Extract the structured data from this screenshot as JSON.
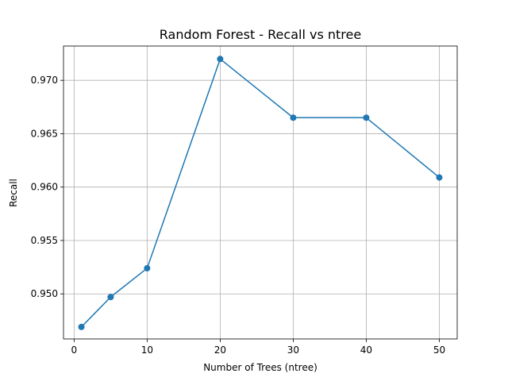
{
  "chart_data": {
    "type": "line",
    "title": "Random Forest - Recall vs ntree",
    "xlabel": "Number of Trees (ntree)",
    "ylabel": "Recall",
    "x": [
      1,
      5,
      10,
      20,
      30,
      40,
      50
    ],
    "series": [
      {
        "values": [
          0.9469,
          0.9497,
          0.9524,
          0.972,
          0.9665,
          0.9665,
          0.9609
        ],
        "color": "#1f77b4",
        "marker": "circle"
      }
    ],
    "xlim": [
      -1.45,
      52.45
    ],
    "ylim": [
      0.94578,
      0.97321
    ],
    "xticks": [
      0,
      10,
      20,
      30,
      40,
      50
    ],
    "xtick_labels": [
      "0",
      "10",
      "20",
      "30",
      "40",
      "50"
    ],
    "yticks": [
      0.95,
      0.955,
      0.96,
      0.965,
      0.97
    ],
    "ytick_labels": [
      "0.950",
      "0.955",
      "0.960",
      "0.965",
      "0.970"
    ],
    "grid": true
  }
}
